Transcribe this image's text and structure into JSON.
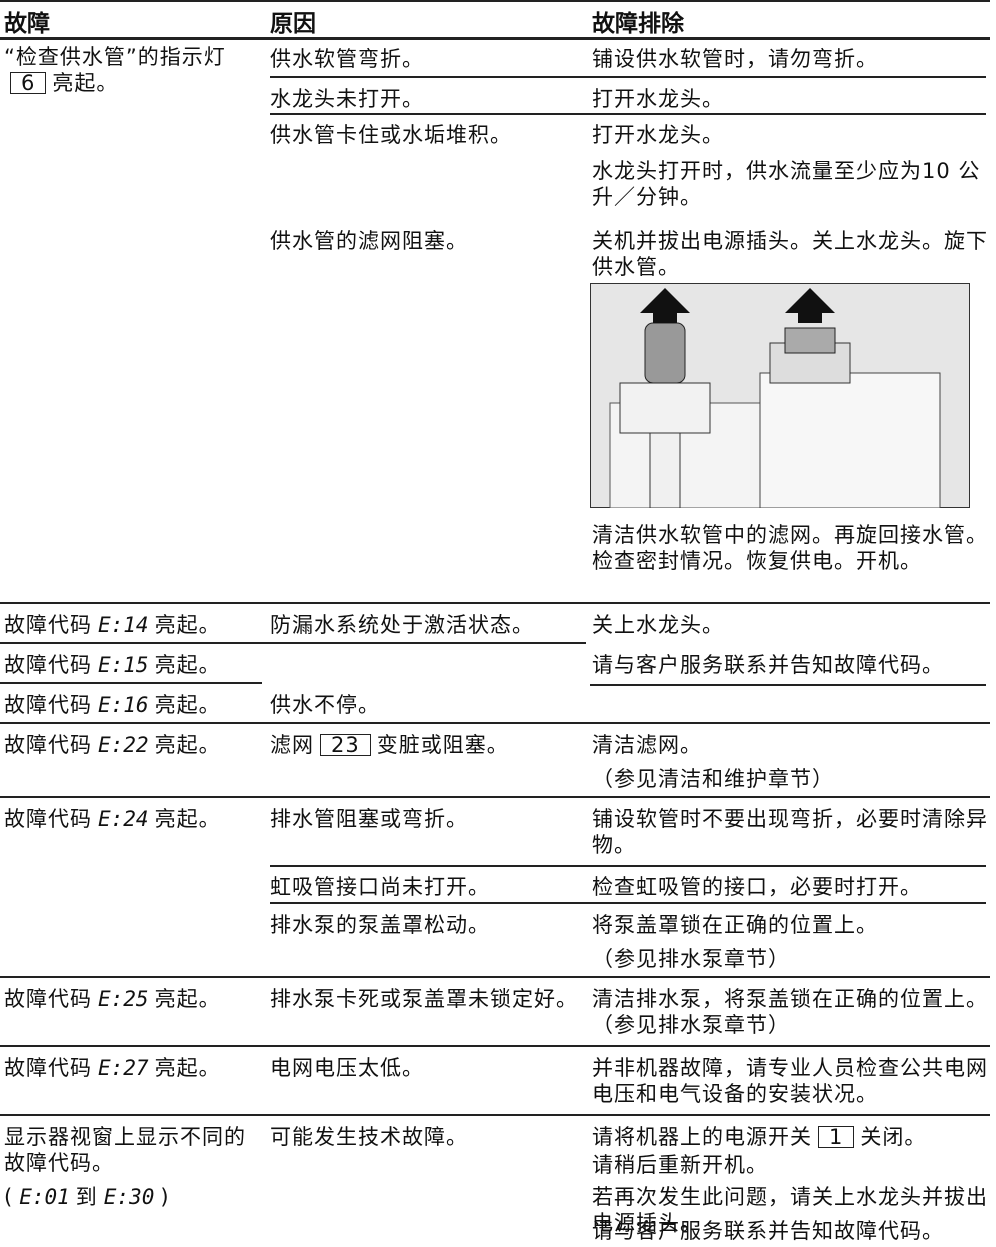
{
  "header": {
    "fault": "故障",
    "cause": "原因",
    "remedy": "故障排除"
  },
  "cells": [
    [
      "“检查供水管”的指示灯",
      "6",
      "亮起。"
    ],
    [
      "供水软管弯折。"
    ],
    [
      "水龙头未打开。"
    ],
    [
      "供水管卡住或水垢堆积。"
    ],
    [
      "供水管的滤网阻塞。"
    ],
    [
      "铺设供水软管时，请勿弯折。"
    ],
    [
      "打开水龙头。"
    ],
    [
      "打开水龙头。"
    ],
    [
      "水龙头打开时，供水流量至少应为10 公升／分钟。"
    ],
    [
      "关机并拔出电源插头。关上水龙头。旋下供水管。"
    ],
    [
      "清洁供水软管中的滤网。再旋回接水管。检查密封情况。恢复供电。开机。"
    ],
    [
      "故障代码",
      "E:14",
      "亮起。"
    ],
    [
      "故障代码",
      "E:15",
      "亮起。"
    ],
    [
      "故障代码",
      "E:16",
      "亮起。"
    ],
    [
      "防漏水系统处于激活状态。"
    ],
    [
      "供水不停。"
    ],
    [
      "关上水龙头。"
    ],
    [
      "请与客户服务联系并告知故障代码。"
    ],
    [
      "故障代码",
      "E:22",
      "亮起。"
    ],
    [
      "滤网",
      "23",
      "变脏或阻塞。"
    ],
    [
      "清洁滤网。"
    ],
    [
      "（参见清洁和维护章节）"
    ],
    [
      "故障代码",
      "E:24",
      "亮起。"
    ],
    [
      "排水管阻塞或弯折。"
    ],
    [
      "铺设软管时不要出现弯折，必要时清除异物。"
    ],
    [
      "虹吸管接口尚未打开。"
    ],
    [
      "检查虹吸管的接口，必要时打开。"
    ],
    [
      "排水泵的泵盖罩松动。"
    ],
    [
      "将泵盖罩锁在正确的位置上。"
    ],
    [
      "（参见排水泵章节）"
    ],
    [
      "故障代码",
      "E:25",
      "亮起。"
    ],
    [
      "排水泵卡死或泵盖罩未锁定好。"
    ],
    [
      "清洁排水泵，将泵盖锁在正确的位置上。（参见排水泵章节）"
    ],
    [
      "故障代码",
      "E:27",
      "亮起。"
    ],
    [
      "电网电压太低。"
    ],
    [
      "并非机器故障，请专业人员检查公共电网电压和电气设备的安装状况。"
    ],
    [
      "显示器视窗上显示不同的故障代码。"
    ],
    [
      "(",
      "E:01",
      "到",
      "E:30",
      ")"
    ],
    [
      "可能发生技术故障。"
    ],
    [
      "请将机器上的电源开关",
      "1",
      "关闭。"
    ],
    [
      "请稍后重新开机。"
    ],
    [
      "若再次发生此问题，请关上水龙头并拔出电源插头。"
    ],
    [
      "请与客户服务联系并告知故障代码。"
    ]
  ]
}
